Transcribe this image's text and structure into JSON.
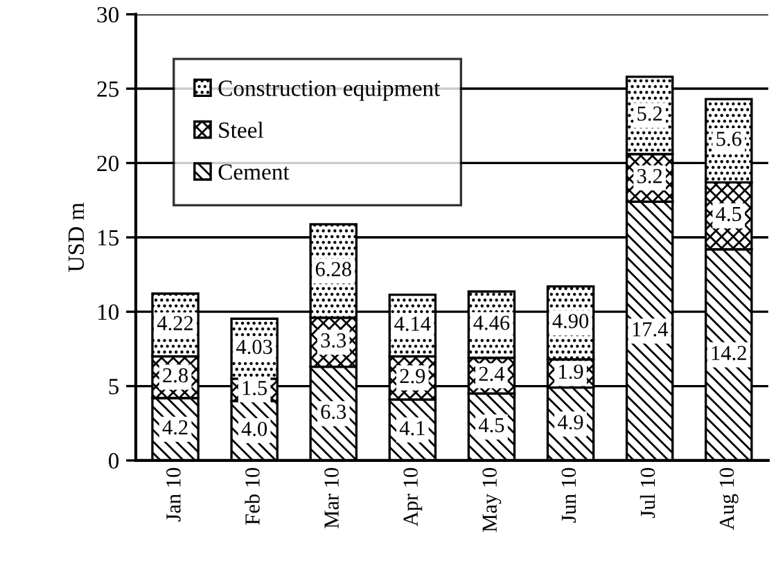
{
  "chart_data": {
    "type": "bar",
    "stacked": true,
    "ylabel": "USD m",
    "categories": [
      "Jan 10",
      "Feb 10",
      "Mar 10",
      "Apr 10",
      "May 10",
      "Jun 10",
      "Jul 10",
      "Aug 10"
    ],
    "series": [
      {
        "name": "Cement",
        "color": "#000000",
        "values": [
          4.2,
          4.0,
          6.3,
          4.1,
          4.5,
          4.9,
          17.4,
          14.2
        ],
        "value_labels": [
          "4.2",
          "4.0",
          "6.3",
          "4.1",
          "4.5",
          "4.9",
          "17.4",
          "14.2"
        ]
      },
      {
        "name": "Steel",
        "color": "#000000",
        "values": [
          2.8,
          1.5,
          3.3,
          2.9,
          2.4,
          1.9,
          3.2,
          4.5
        ],
        "value_labels": [
          "2.8",
          "1.5",
          "3.3",
          "2.9",
          "2.4",
          "1.9",
          "3.2",
          "4.5"
        ]
      },
      {
        "name": "Construction equipment",
        "color": "#000000",
        "values": [
          4.22,
          4.03,
          6.28,
          4.14,
          4.46,
          4.9,
          5.2,
          5.6
        ],
        "value_labels": [
          "4.22",
          "4.03",
          "6.28",
          "4.14",
          "4.46",
          "4.90",
          "5.2",
          "5.6"
        ]
      }
    ],
    "ylim": [
      0,
      30
    ],
    "yticks": [
      0,
      5,
      10,
      15,
      20,
      25,
      30
    ],
    "grid": "y",
    "legend": "top left"
  }
}
